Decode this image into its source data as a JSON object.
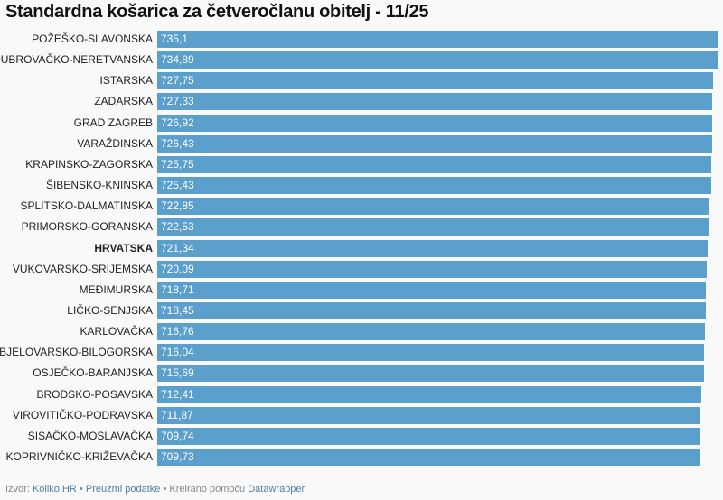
{
  "title": "Standardna košarica za četveročlanu obitelj - 11/25",
  "chart_data": {
    "type": "bar",
    "orientation": "horizontal",
    "title": "Standardna košarica za četveročlanu obitelj - 11/25",
    "bar_color": "#5b9fcc",
    "highlight": "HRVATSKA",
    "xlim": [
      0,
      735.1
    ],
    "categories": [
      "POŽEŠKO-SLAVONSKA",
      "DUBROVAČKO-NERETVANSKA",
      "ISTARSKA",
      "ZADARSKA",
      "GRAD ZAGREB",
      "VARAŽDINSKA",
      "KRAPINSKO-ZAGORSKA",
      "ŠIBENSKO-KNINSKA",
      "SPLITSKO-DALMATINSKA",
      "PRIMORSKO-GORANSKA",
      "HRVATSKA",
      "VUKOVARSKO-SRIJEMSKA",
      "MEĐIMURSKA",
      "LIČKO-SENJSKA",
      "KARLOVAČKA",
      "BJELOVARSKO-BILOGORSKA",
      "OSJEČKO-BARANJSKA",
      "BRODSKO-POSAVSKA",
      "VIROVITIČKO-PODRAVSKA",
      "SISAČKO-MOSLAVAČKA",
      "KOPRIVNIČKO-KRIŽEVAČKA"
    ],
    "values": [
      735.1,
      734.89,
      727.75,
      727.33,
      726.92,
      726.43,
      725.75,
      725.43,
      722.85,
      722.53,
      721.34,
      720.09,
      718.71,
      718.45,
      716.76,
      716.04,
      715.69,
      712.41,
      711.87,
      709.74,
      709.73
    ],
    "labels": [
      "735,1",
      "734,89",
      "727,75",
      "727,33",
      "726,92",
      "726,43",
      "725,75",
      "725,43",
      "722,85",
      "722,53",
      "721,34",
      "720,09",
      "718,71",
      "718,45",
      "716,76",
      "716,04",
      "715,69",
      "712,41",
      "711,87",
      "709,74",
      "709,73"
    ]
  },
  "footer": {
    "source_prefix": "Izvor:",
    "source": "Koliko.HR",
    "sep1": "•",
    "download": "Preuzmi podatke",
    "sep2": "•",
    "created": "Kreirano pomoću",
    "tool": "Datawrapper"
  }
}
